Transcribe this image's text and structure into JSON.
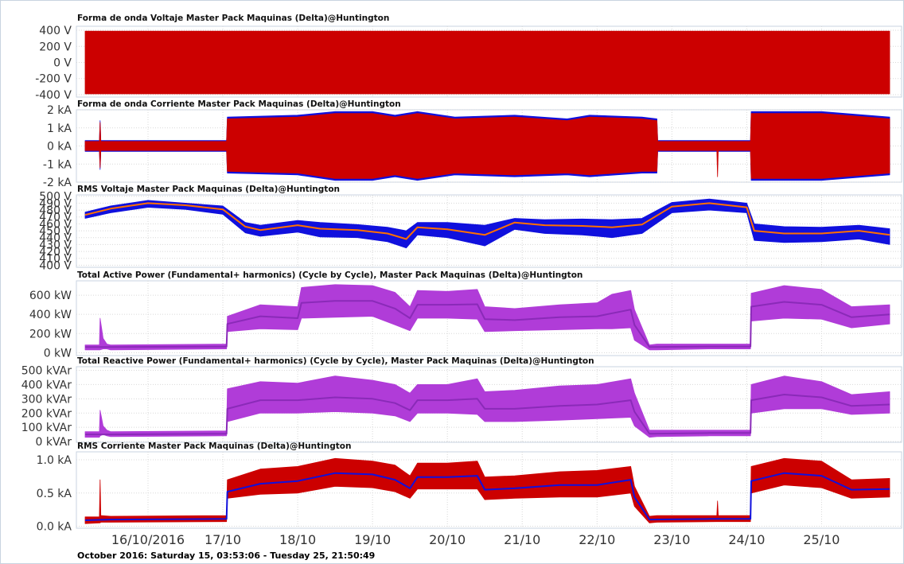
{
  "footer": "October 2016: Saturday 15, 03:53:06 - Tuesday 25, 21:50:49",
  "x_axis": {
    "ticks": [
      "16/10/2016",
      "17/10",
      "18/10",
      "19/10",
      "20/10",
      "21/10",
      "22/10",
      "23/10",
      "24/10",
      "25/10"
    ],
    "tick_positions_days": [
      1,
      2,
      3,
      4,
      5,
      6,
      7,
      8,
      9,
      10
    ],
    "range_days": [
      0.16,
      10.91
    ]
  },
  "colors": {
    "red": "#cc0000",
    "blue": "#1010dd",
    "yellow": "#d8c800",
    "purple": "#b03cd8",
    "purple_line": "#8a2ab8",
    "orange_line": "#ff7000",
    "grid": "#d8d8d8",
    "border": "#c8d3e0"
  },
  "chart_data": [
    {
      "type": "area",
      "title": "Forma de onda Voltaje Master Pack Maquinas (Delta)@Huntington",
      "ylim": [
        -430,
        450
      ],
      "yticks": [
        400,
        200,
        0,
        -200,
        -400
      ],
      "ytick_labels": [
        "400 V",
        "200 V",
        "0 V",
        "-200 V",
        "-400 V"
      ],
      "series": [
        {
          "color": "#cc0000",
          "style": "band",
          "x": [
            0.16,
            10.91
          ],
          "lo": [
            -390,
            -390
          ],
          "hi": [
            390,
            390
          ]
        }
      ]
    },
    {
      "type": "area",
      "title": "Forma de onda Corriente Master Pack Maquinas (Delta)@Huntington",
      "ylim": [
        -2000,
        2000
      ],
      "yticks": [
        2000,
        1000,
        0,
        -1000,
        -2000
      ],
      "ytick_labels": [
        "2 kA",
        "1 kA",
        "0 kA",
        "-1 kA",
        "-2 kA"
      ],
      "series": [
        {
          "color": "#1010dd",
          "style": "band",
          "x": [
            0.16,
            0.35,
            0.36,
            0.37,
            1.5,
            2.05,
            2.06,
            3.0,
            3.5,
            4.0,
            4.3,
            4.6,
            5.1,
            5.9,
            6.6,
            6.9,
            7.6,
            7.8,
            7.81,
            9.05,
            9.06,
            10.0,
            10.91
          ],
          "lo": [
            -300,
            -300,
            -1300,
            -300,
            -300,
            -300,
            -1500,
            -1600,
            -1900,
            -1900,
            -1700,
            -1900,
            -1600,
            -1700,
            -1600,
            -1700,
            -1500,
            -1500,
            -300,
            -300,
            -1900,
            -1900,
            -1600
          ],
          "hi": [
            300,
            300,
            1400,
            300,
            300,
            300,
            1600,
            1700,
            1900,
            1900,
            1700,
            1900,
            1600,
            1700,
            1500,
            1700,
            1600,
            1500,
            300,
            300,
            1900,
            1900,
            1600
          ]
        },
        {
          "color": "#cc0000",
          "style": "band",
          "x": [
            0.16,
            0.35,
            0.36,
            0.37,
            1.5,
            2.05,
            2.06,
            3.0,
            3.5,
            4.0,
            4.3,
            4.6,
            5.1,
            5.9,
            6.6,
            6.9,
            7.6,
            7.8,
            7.81,
            8.6,
            8.61,
            8.62,
            9.05,
            9.06,
            10.0,
            10.91
          ],
          "lo": [
            -250,
            -250,
            -1200,
            -250,
            -250,
            -250,
            -1400,
            -1500,
            -1800,
            -1800,
            -1600,
            -1800,
            -1500,
            -1600,
            -1500,
            -1600,
            -1400,
            -1400,
            -250,
            -250,
            -1700,
            -250,
            -250,
            -1800,
            -1800,
            -1500
          ],
          "hi": [
            250,
            250,
            1300,
            250,
            250,
            250,
            1500,
            1600,
            1800,
            1800,
            1600,
            1800,
            1500,
            1600,
            1400,
            1600,
            1500,
            1400,
            250,
            250,
            250,
            250,
            250,
            1800,
            1800,
            1500
          ]
        }
      ]
    },
    {
      "type": "line",
      "title": "RMS Voltaje Master Pack Maquinas (Delta)@Huntington",
      "ylim": [
        397,
        502
      ],
      "yticks": [
        500,
        490,
        480,
        470,
        460,
        450,
        440,
        430,
        420,
        410,
        400
      ],
      "ytick_labels": [
        "500 V",
        "490 V",
        "480 V",
        "470 V",
        "460 V",
        "450 V",
        "440 V",
        "430 V",
        "420 V",
        "410 V",
        "400 V"
      ],
      "series": [
        {
          "color": "#1010dd",
          "style": "band",
          "x": [
            0.16,
            0.5,
            1.0,
            1.5,
            2.0,
            2.3,
            2.5,
            3.0,
            3.3,
            3.8,
            4.2,
            4.45,
            4.6,
            5.0,
            5.5,
            5.9,
            6.3,
            6.8,
            7.2,
            7.6,
            8.0,
            8.5,
            9.0,
            9.1,
            9.5,
            10.0,
            10.5,
            10.91
          ],
          "lo": [
            468,
            476,
            484,
            481,
            474,
            447,
            442,
            448,
            441,
            440,
            434,
            425,
            444,
            440,
            428,
            452,
            446,
            444,
            440,
            446,
            476,
            480,
            476,
            436,
            433,
            434,
            438,
            430
          ],
          "hi": [
            477,
            486,
            494,
            490,
            486,
            462,
            458,
            465,
            462,
            459,
            455,
            450,
            462,
            462,
            458,
            468,
            466,
            467,
            466,
            468,
            491,
            496,
            490,
            460,
            456,
            455,
            458,
            453
          ]
        },
        {
          "color": "#ff7000",
          "style": "line",
          "x": [
            0.16,
            0.5,
            1.0,
            1.5,
            2.0,
            2.3,
            2.5,
            3.0,
            3.3,
            3.8,
            4.2,
            4.45,
            4.6,
            5.0,
            5.5,
            5.9,
            6.3,
            6.8,
            7.2,
            7.6,
            8.0,
            8.5,
            9.0,
            9.1,
            9.5,
            10.0,
            10.5,
            10.91
          ],
          "y": [
            473,
            482,
            490,
            487,
            481,
            456,
            451,
            458,
            453,
            451,
            446,
            438,
            455,
            452,
            444,
            462,
            458,
            457,
            455,
            459,
            485,
            490,
            484,
            450,
            446,
            446,
            450,
            444
          ]
        }
      ]
    },
    {
      "type": "area",
      "title": "Total Active Power (Fundamental+ harmonics) (Cycle by Cycle), Master Pack Maquinas (Delta)@Huntington",
      "ylim": [
        -30,
        750
      ],
      "yticks": [
        600,
        400,
        200,
        0
      ],
      "ytick_labels": [
        "600 kW",
        "400 kW",
        "200 kW",
        "0 kW"
      ],
      "series": [
        {
          "color": "#b03cd8",
          "style": "band",
          "x": [
            0.16,
            0.35,
            0.36,
            0.4,
            0.45,
            0.5,
            2.05,
            2.06,
            2.5,
            3.0,
            3.05,
            3.5,
            4.0,
            4.3,
            4.5,
            4.6,
            5.0,
            5.4,
            5.5,
            5.9,
            6.5,
            7.0,
            7.2,
            7.45,
            7.5,
            7.7,
            7.8,
            8.5,
            9.05,
            9.06,
            9.5,
            10.0,
            10.4,
            10.91
          ],
          "lo": [
            30,
            30,
            30,
            40,
            40,
            30,
            40,
            220,
            250,
            240,
            360,
            370,
            380,
            290,
            230,
            360,
            360,
            350,
            220,
            230,
            240,
            250,
            250,
            260,
            130,
            30,
            30,
            40,
            40,
            330,
            360,
            350,
            260,
            300
          ],
          "hi": [
            80,
            80,
            360,
            150,
            90,
            80,
            90,
            380,
            500,
            480,
            680,
            710,
            700,
            630,
            480,
            650,
            640,
            660,
            480,
            460,
            500,
            520,
            610,
            650,
            450,
            80,
            90,
            90,
            90,
            620,
            700,
            660,
            480,
            500
          ]
        },
        {
          "color": "#8a2ab8",
          "style": "line",
          "x": [
            0.16,
            0.5,
            2.05,
            2.06,
            2.5,
            3.0,
            3.05,
            3.5,
            4.0,
            4.3,
            4.5,
            4.6,
            5.0,
            5.4,
            5.5,
            5.9,
            6.5,
            7.0,
            7.45,
            7.5,
            7.7,
            8.5,
            9.05,
            9.06,
            9.5,
            10.0,
            10.4,
            10.91
          ],
          "y": [
            60,
            60,
            65,
            300,
            380,
            360,
            520,
            540,
            540,
            460,
            360,
            500,
            500,
            505,
            350,
            340,
            370,
            380,
            450,
            290,
            60,
            65,
            65,
            480,
            530,
            500,
            370,
            400
          ]
        }
      ]
    },
    {
      "type": "area",
      "title": "Total Reactive Power (Fundamental+ harmonics) (Cycle by Cycle), Master Pack Maquinas (Delta)@Huntington",
      "ylim": [
        -5,
        525
      ],
      "yticks": [
        500,
        400,
        300,
        200,
        100,
        0
      ],
      "ytick_labels": [
        "500 kVAr",
        "400 kVAr",
        "300 kVAr",
        "200 kVAr",
        "100 kVAr",
        "0 kVAr"
      ],
      "series": [
        {
          "color": "#b03cd8",
          "style": "band",
          "x": [
            0.16,
            0.35,
            0.36,
            0.4,
            0.45,
            0.5,
            2.05,
            2.06,
            2.5,
            3.0,
            3.5,
            4.0,
            4.3,
            4.5,
            4.6,
            5.0,
            5.4,
            5.5,
            5.9,
            6.5,
            7.0,
            7.45,
            7.5,
            7.7,
            7.8,
            8.5,
            9.05,
            9.06,
            9.5,
            10.0,
            10.4,
            10.91
          ],
          "lo": [
            30,
            30,
            40,
            50,
            40,
            35,
            40,
            140,
            200,
            200,
            210,
            200,
            180,
            140,
            200,
            200,
            190,
            140,
            140,
            150,
            160,
            170,
            110,
            30,
            35,
            40,
            40,
            200,
            230,
            230,
            190,
            200
          ],
          "hi": [
            70,
            70,
            220,
            110,
            80,
            70,
            75,
            370,
            420,
            410,
            460,
            430,
            400,
            340,
            400,
            400,
            440,
            350,
            360,
            390,
            400,
            440,
            340,
            80,
            80,
            80,
            80,
            400,
            460,
            420,
            330,
            350
          ]
        },
        {
          "color": "#8a2ab8",
          "style": "line",
          "x": [
            0.16,
            0.5,
            2.05,
            2.06,
            2.5,
            3.0,
            3.5,
            4.0,
            4.3,
            4.5,
            4.6,
            5.0,
            5.4,
            5.5,
            5.9,
            6.5,
            7.0,
            7.45,
            7.5,
            7.7,
            8.5,
            9.05,
            9.06,
            9.5,
            10.0,
            10.4,
            10.91
          ],
          "y": [
            50,
            50,
            55,
            230,
            290,
            290,
            310,
            300,
            270,
            220,
            290,
            290,
            300,
            230,
            230,
            250,
            260,
            290,
            210,
            55,
            60,
            60,
            290,
            330,
            310,
            250,
            260
          ]
        }
      ]
    },
    {
      "type": "line",
      "title": "RMS Corriente Master Pack Maquinas (Delta)@Huntington",
      "ylim": [
        -0.03,
        1.12
      ],
      "yticks": [
        1.0,
        0.5,
        0.0
      ],
      "ytick_labels": [
        "1.0 kA",
        "0.5 kA",
        "0.0 kA"
      ],
      "series": [
        {
          "color": "#cc0000",
          "style": "band",
          "x": [
            0.16,
            0.35,
            0.36,
            0.37,
            0.5,
            2.05,
            2.06,
            2.5,
            3.0,
            3.5,
            4.0,
            4.3,
            4.5,
            4.6,
            5.0,
            5.4,
            5.5,
            5.9,
            6.5,
            7.0,
            7.45,
            7.5,
            7.7,
            7.8,
            8.6,
            8.61,
            8.62,
            9.05,
            9.06,
            9.5,
            10.0,
            10.4,
            10.91
          ],
          "lo": [
            0.04,
            0.05,
            0.05,
            0.06,
            0.06,
            0.07,
            0.42,
            0.48,
            0.5,
            0.6,
            0.58,
            0.52,
            0.42,
            0.56,
            0.56,
            0.56,
            0.4,
            0.42,
            0.44,
            0.44,
            0.5,
            0.3,
            0.05,
            0.06,
            0.07,
            0.07,
            0.07,
            0.07,
            0.5,
            0.62,
            0.58,
            0.42,
            0.44
          ],
          "hi": [
            0.14,
            0.14,
            0.7,
            0.16,
            0.15,
            0.16,
            0.7,
            0.86,
            0.9,
            1.02,
            0.98,
            0.92,
            0.76,
            0.95,
            0.95,
            0.98,
            0.74,
            0.76,
            0.82,
            0.84,
            0.9,
            0.6,
            0.15,
            0.16,
            0.16,
            0.38,
            0.16,
            0.16,
            0.9,
            1.02,
            0.98,
            0.7,
            0.72
          ]
        },
        {
          "color": "#1010dd",
          "style": "line",
          "x": [
            0.16,
            0.5,
            2.05,
            2.06,
            2.5,
            3.0,
            3.5,
            4.0,
            4.3,
            4.5,
            4.6,
            5.0,
            5.4,
            5.5,
            5.9,
            6.5,
            7.0,
            7.45,
            7.5,
            7.7,
            8.5,
            9.05,
            9.06,
            9.5,
            10.0,
            10.4,
            10.91
          ],
          "y": [
            0.09,
            0.1,
            0.11,
            0.52,
            0.64,
            0.68,
            0.8,
            0.78,
            0.7,
            0.57,
            0.74,
            0.74,
            0.76,
            0.55,
            0.57,
            0.62,
            0.62,
            0.7,
            0.44,
            0.1,
            0.11,
            0.11,
            0.68,
            0.8,
            0.76,
            0.55,
            0.56
          ]
        }
      ]
    }
  ]
}
